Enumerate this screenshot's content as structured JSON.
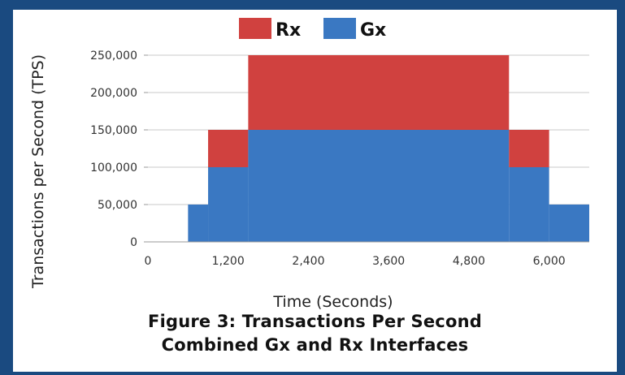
{
  "caption": {
    "line1": "Figure 3: Transactions Per Second",
    "line2": "Combined Gx and Rx Interfaces"
  },
  "chart_data": {
    "type": "area",
    "title": "",
    "xlabel": "Time (Seconds)",
    "ylabel": "Transactions per Second (TPS)",
    "xlim": [
      0,
      6600
    ],
    "ylim": [
      0,
      250000
    ],
    "x_ticks": [
      0,
      1200,
      2400,
      3600,
      4800,
      6000
    ],
    "x_tick_labels": [
      "0",
      "1,200",
      "2,400",
      "3,600",
      "4,800",
      "6,000"
    ],
    "y_ticks": [
      0,
      50000,
      100000,
      150000,
      200000,
      250000
    ],
    "y_tick_labels": [
      "0",
      "50,000",
      "100,000",
      "150,000",
      "200,000",
      "250,000"
    ],
    "grid": true,
    "stacked": true,
    "step": true,
    "legend_position": "top",
    "segments": [
      {
        "x_start": 600,
        "x_end": 900
      },
      {
        "x_start": 900,
        "x_end": 1500
      },
      {
        "x_start": 1500,
        "x_end": 5400
      },
      {
        "x_start": 5400,
        "x_end": 6000
      },
      {
        "x_start": 6000,
        "x_end": 6600
      }
    ],
    "series": [
      {
        "name": "Gx",
        "color": "#3a78c2",
        "values": [
          50000,
          100000,
          150000,
          100000,
          50000
        ]
      },
      {
        "name": "Rx",
        "color": "#d0413f",
        "values": [
          0,
          50000,
          100000,
          50000,
          0
        ]
      }
    ],
    "legend_order": [
      "Rx",
      "Gx"
    ]
  }
}
